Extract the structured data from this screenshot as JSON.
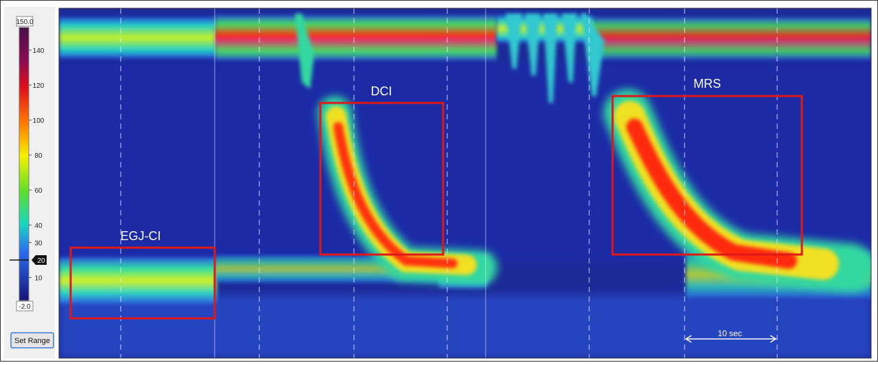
{
  "colorbar": {
    "max_label": "150.0",
    "min_label": "-2.0",
    "ticks": [
      140,
      120,
      100,
      80,
      60,
      40,
      30,
      10
    ],
    "marker": 20
  },
  "button": "Set Range",
  "annotations": {
    "egj": "EGJ-CI",
    "dci": "DCI",
    "mrs": "MRS"
  },
  "scale_bar": "10 sec"
}
